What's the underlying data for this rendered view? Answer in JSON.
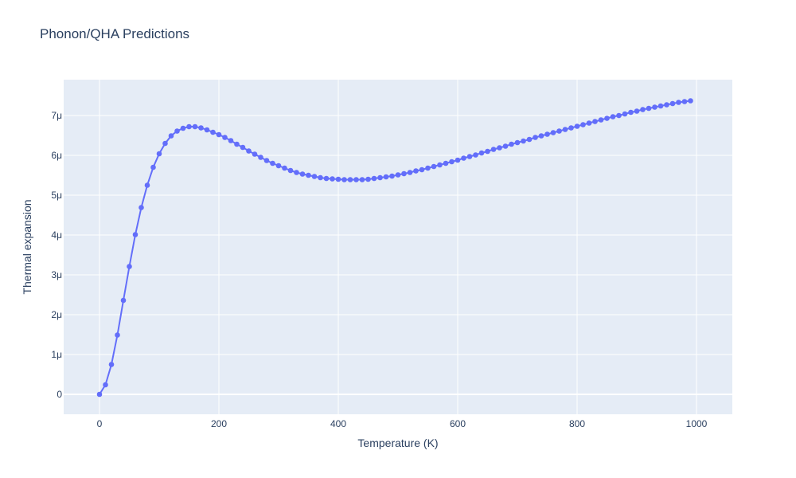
{
  "chart_data": {
    "type": "line",
    "title": "Phonon/QHA Predictions",
    "xlabel": "Temperature (K)",
    "ylabel": "Thermal expansion",
    "xlim": [
      -60,
      1060
    ],
    "ylim": [
      -0.5,
      7.9
    ],
    "x_ticks": [
      0,
      200,
      400,
      600,
      800,
      1000
    ],
    "x_tick_labels": [
      "0",
      "200",
      "400",
      "600",
      "800",
      "1000"
    ],
    "y_ticks": [
      0,
      1,
      2,
      3,
      4,
      5,
      6,
      7
    ],
    "y_tick_labels": [
      "0",
      "1μ",
      "2μ",
      "3μ",
      "4μ",
      "5μ",
      "6μ",
      "7μ"
    ],
    "y_unit_note": "values in units of 1e-6",
    "grid": true,
    "colors": {
      "line": "#636efa",
      "plot_bg": "#e5ecf6",
      "grid": "#ffffff",
      "text": "#2a3f5f"
    },
    "series": [
      {
        "x": [
          0,
          10,
          20,
          30,
          40,
          50,
          60,
          70,
          80,
          90,
          100,
          110,
          120,
          130,
          140,
          150,
          160,
          170,
          180,
          190,
          200,
          210,
          220,
          230,
          240,
          250,
          260,
          270,
          280,
          290,
          300,
          310,
          320,
          330,
          340,
          350,
          360,
          370,
          380,
          390,
          400,
          410,
          420,
          430,
          440,
          450,
          460,
          470,
          480,
          490,
          500,
          510,
          520,
          530,
          540,
          550,
          560,
          570,
          580,
          590,
          600,
          610,
          620,
          630,
          640,
          650,
          660,
          670,
          680,
          690,
          700,
          710,
          720,
          730,
          740,
          750,
          760,
          770,
          780,
          790,
          800,
          810,
          820,
          830,
          840,
          850,
          860,
          870,
          880,
          890,
          900,
          910,
          920,
          930,
          940,
          950,
          960,
          970,
          980,
          990
        ],
        "values": [
          0,
          0.24,
          0.75,
          1.49,
          2.36,
          3.21,
          4.01,
          4.69,
          5.25,
          5.7,
          6.04,
          6.3,
          6.49,
          6.61,
          6.68,
          6.72,
          6.72,
          6.69,
          6.64,
          6.58,
          6.52,
          6.45,
          6.37,
          6.28,
          6.2,
          6.11,
          6.03,
          5.95,
          5.87,
          5.8,
          5.74,
          5.68,
          5.62,
          5.57,
          5.53,
          5.5,
          5.47,
          5.44,
          5.42,
          5.41,
          5.4,
          5.39,
          5.39,
          5.39,
          5.39,
          5.4,
          5.42,
          5.44,
          5.46,
          5.48,
          5.51,
          5.54,
          5.57,
          5.61,
          5.64,
          5.68,
          5.72,
          5.76,
          5.8,
          5.84,
          5.88,
          5.93,
          5.97,
          6.01,
          6.06,
          6.1,
          6.15,
          6.19,
          6.23,
          6.28,
          6.32,
          6.36,
          6.4,
          6.45,
          6.49,
          6.53,
          6.57,
          6.61,
          6.65,
          6.69,
          6.73,
          6.77,
          6.81,
          6.85,
          6.89,
          6.93,
          6.97,
          7.0,
          7.04,
          7.08,
          7.11,
          7.15,
          7.18,
          7.21,
          7.24,
          7.27,
          7.3,
          7.33,
          7.35,
          7.37
        ]
      }
    ]
  }
}
